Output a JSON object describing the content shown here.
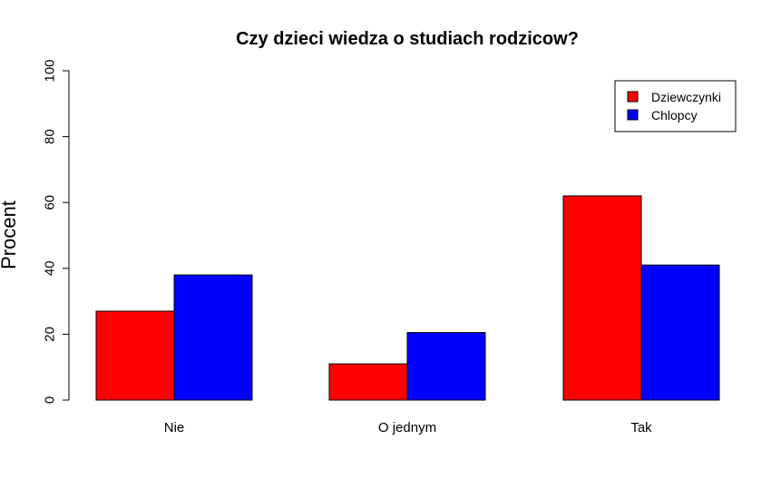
{
  "chart_data": {
    "type": "bar",
    "title": "Czy dzieci wiedza o studiach rodzicow?",
    "xlabel": "",
    "ylabel": "Procent",
    "ylim": [
      0,
      100
    ],
    "yticks": [
      0,
      20,
      40,
      60,
      80,
      100
    ],
    "categories": [
      "Nie",
      "O jednym",
      "Tak"
    ],
    "series": [
      {
        "name": "Dziewczynki",
        "color": "#ff0000",
        "values": [
          27,
          11,
          62
        ]
      },
      {
        "name": "Chlopcy",
        "color": "#0000ff",
        "values": [
          38,
          20.5,
          41
        ]
      }
    ],
    "legend_position": "top-right",
    "grid": false
  }
}
